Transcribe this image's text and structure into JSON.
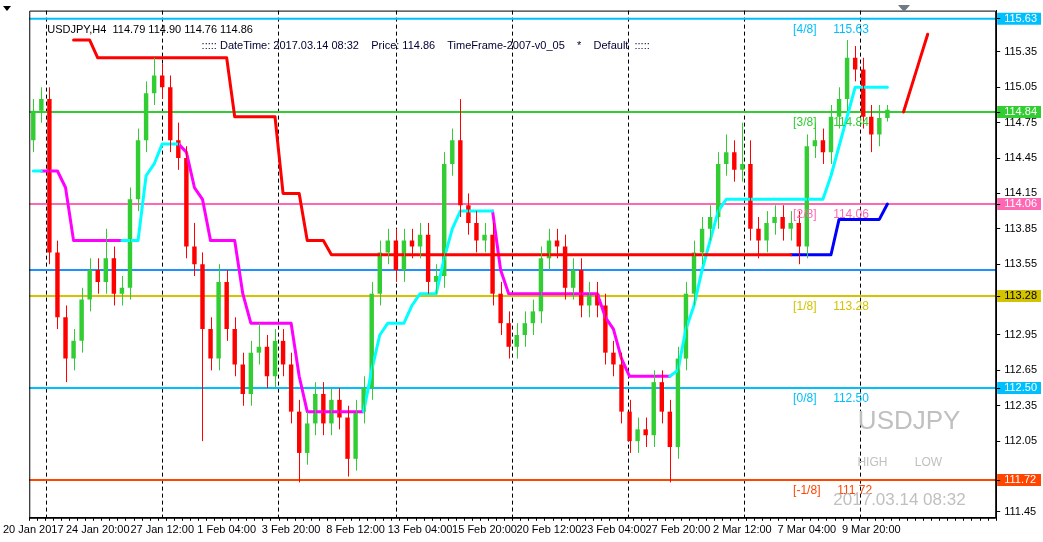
{
  "chart_data": {
    "type": "candlestick",
    "title": "USDJPY,H4  114.79 114.90 114.76 114.86",
    "subtitle": "::::: DateTime: 2017.03.14 08:32    Price: 114.86    TimeFrame-2007-v0_05    *    Default  :::::",
    "categories": [
      "20 Jan 2017",
      null,
      null,
      null,
      null,
      null,
      null,
      null,
      "24 Jan 20:00",
      null,
      null,
      null,
      null,
      null,
      null,
      null,
      "27 Jan 12:00",
      null,
      null,
      null,
      null,
      null,
      null,
      null,
      "1 Feb 04:00",
      null,
      null,
      null,
      null,
      null,
      null,
      null,
      "3 Feb 20:00",
      null,
      null,
      null,
      null,
      null,
      null,
      null,
      "8 Feb 12:00",
      null,
      null,
      null,
      null,
      null,
      null,
      null,
      "13 Feb 04:00",
      null,
      null,
      null,
      null,
      null,
      null,
      null,
      "15 Feb 20:00",
      null,
      null,
      null,
      null,
      null,
      null,
      null,
      "20 Feb 12:00",
      null,
      null,
      null,
      null,
      null,
      null,
      null,
      "23 Feb 04:00",
      null,
      null,
      null,
      null,
      null,
      null,
      null,
      "27 Feb 20:00",
      null,
      null,
      null,
      null,
      null,
      null,
      null,
      "2 Mar 12:00",
      null,
      null,
      null,
      null,
      null,
      null,
      null,
      "7 Mar 04:00",
      null,
      null,
      null,
      null,
      null,
      null,
      null,
      "9 Mar 20:00",
      null,
      null,
      null,
      null,
      null,
      null,
      null,
      null,
      null,
      null,
      null,
      null,
      null,
      null,
      null
    ],
    "ohlc": [
      [
        114.6,
        114.95,
        114.5,
        114.85
      ],
      [
        114.85,
        115.05,
        114.75,
        114.95
      ],
      [
        114.95,
        115.05,
        113.55,
        113.65
      ],
      [
        113.65,
        113.75,
        113.0,
        113.1
      ],
      [
        113.1,
        113.2,
        112.55,
        112.75
      ],
      [
        112.75,
        113.0,
        112.65,
        112.9
      ],
      [
        112.9,
        113.35,
        112.8,
        113.25
      ],
      [
        113.25,
        113.6,
        113.15,
        113.5
      ],
      [
        113.5,
        113.6,
        113.3,
        113.4
      ],
      [
        113.4,
        113.85,
        113.3,
        113.6
      ],
      [
        113.6,
        113.7,
        113.2,
        113.3
      ],
      [
        113.3,
        113.45,
        113.2,
        113.35
      ],
      [
        113.35,
        114.2,
        113.25,
        114.1
      ],
      [
        114.1,
        114.7,
        114.0,
        114.6
      ],
      [
        114.6,
        115.1,
        114.5,
        115.0
      ],
      [
        115.0,
        115.3,
        114.9,
        115.15
      ],
      [
        115.15,
        115.25,
        114.95,
        115.05
      ],
      [
        115.05,
        115.15,
        114.5,
        114.6
      ],
      [
        114.6,
        114.75,
        114.35,
        114.45
      ],
      [
        114.45,
        114.55,
        113.6,
        113.7
      ],
      [
        113.7,
        113.9,
        113.45,
        113.55
      ],
      [
        113.55,
        113.65,
        112.05,
        113.0
      ],
      [
        113.0,
        113.1,
        112.65,
        112.75
      ],
      [
        112.75,
        113.55,
        112.65,
        113.4
      ],
      [
        113.4,
        113.5,
        112.9,
        113.0
      ],
      [
        113.0,
        113.1,
        112.6,
        112.7
      ],
      [
        112.7,
        112.8,
        112.35,
        112.45
      ],
      [
        112.45,
        112.9,
        112.35,
        112.8
      ],
      [
        112.8,
        113.05,
        112.7,
        112.85
      ],
      [
        112.85,
        112.95,
        112.5,
        112.6
      ],
      [
        112.6,
        113.0,
        112.5,
        112.9
      ],
      [
        112.9,
        113.0,
        112.6,
        112.7
      ],
      [
        112.7,
        112.8,
        112.2,
        112.3
      ],
      [
        112.3,
        112.4,
        111.7,
        111.95
      ],
      [
        111.95,
        112.3,
        111.85,
        112.2
      ],
      [
        112.2,
        112.55,
        112.1,
        112.45
      ],
      [
        112.45,
        112.55,
        112.1,
        112.2
      ],
      [
        112.2,
        112.5,
        112.1,
        112.4
      ],
      [
        112.4,
        112.5,
        112.15,
        112.25
      ],
      [
        112.25,
        112.35,
        111.75,
        111.9
      ],
      [
        111.9,
        112.4,
        111.8,
        112.3
      ],
      [
        112.3,
        112.6,
        112.2,
        112.5
      ],
      [
        112.5,
        113.4,
        112.4,
        113.3
      ],
      [
        113.3,
        113.75,
        113.2,
        113.65
      ],
      [
        113.65,
        113.85,
        113.55,
        113.75
      ],
      [
        113.75,
        113.85,
        113.4,
        113.5
      ],
      [
        113.5,
        113.85,
        113.4,
        113.75
      ],
      [
        113.75,
        113.85,
        113.6,
        113.7
      ],
      [
        113.7,
        113.9,
        113.6,
        113.8
      ],
      [
        113.8,
        113.9,
        113.3,
        113.4
      ],
      [
        113.4,
        113.55,
        113.3,
        113.45
      ],
      [
        113.45,
        114.5,
        113.35,
        114.4
      ],
      [
        114.4,
        114.7,
        114.3,
        114.6
      ],
      [
        114.6,
        114.95,
        113.95,
        114.05
      ],
      [
        114.05,
        114.15,
        113.8,
        113.9
      ],
      [
        113.9,
        114.0,
        113.65,
        113.75
      ],
      [
        113.75,
        113.9,
        113.65,
        113.8
      ],
      [
        113.8,
        113.9,
        113.2,
        113.3
      ],
      [
        113.3,
        113.4,
        112.95,
        113.05
      ],
      [
        113.05,
        113.15,
        112.75,
        112.85
      ],
      [
        112.85,
        113.05,
        112.75,
        112.95
      ],
      [
        112.95,
        113.15,
        112.85,
        113.05
      ],
      [
        113.05,
        113.25,
        112.95,
        113.15
      ],
      [
        113.15,
        113.7,
        113.05,
        113.6
      ],
      [
        113.6,
        113.85,
        113.5,
        113.75
      ],
      [
        113.75,
        113.85,
        113.6,
        113.7
      ],
      [
        113.7,
        113.8,
        113.25,
        113.35
      ],
      [
        113.35,
        113.6,
        113.25,
        113.5
      ],
      [
        113.5,
        113.6,
        113.1,
        113.2
      ],
      [
        113.2,
        113.4,
        113.1,
        113.3
      ],
      [
        113.3,
        113.4,
        113.1,
        113.2
      ],
      [
        113.2,
        113.3,
        112.7,
        112.8
      ],
      [
        112.8,
        112.9,
        112.6,
        112.7
      ],
      [
        112.7,
        112.8,
        112.2,
        112.3
      ],
      [
        112.3,
        112.4,
        111.95,
        112.05
      ],
      [
        112.05,
        112.25,
        111.95,
        112.15
      ],
      [
        112.15,
        112.25,
        112.0,
        112.1
      ],
      [
        112.1,
        112.65,
        112.0,
        112.55
      ],
      [
        112.55,
        112.65,
        112.2,
        112.3
      ],
      [
        112.3,
        112.4,
        111.7,
        112.0
      ],
      [
        112.0,
        112.85,
        111.9,
        112.75
      ],
      [
        112.75,
        113.4,
        112.65,
        113.3
      ],
      [
        113.3,
        113.75,
        113.2,
        113.65
      ],
      [
        113.65,
        113.95,
        113.55,
        113.85
      ],
      [
        113.85,
        114.05,
        113.75,
        113.95
      ],
      [
        113.95,
        114.5,
        113.85,
        114.4
      ],
      [
        114.4,
        114.65,
        114.3,
        114.5
      ],
      [
        114.5,
        114.6,
        114.25,
        114.35
      ],
      [
        114.35,
        114.75,
        114.25,
        114.4
      ],
      [
        114.4,
        114.6,
        113.75,
        113.85
      ],
      [
        113.85,
        113.95,
        113.6,
        113.75
      ],
      [
        113.75,
        114.0,
        113.65,
        113.9
      ],
      [
        113.9,
        114.05,
        113.8,
        113.95
      ],
      [
        113.95,
        114.05,
        113.75,
        113.85
      ],
      [
        113.85,
        114.0,
        113.75,
        113.9
      ],
      [
        113.9,
        114.0,
        113.55,
        113.7
      ],
      [
        113.7,
        114.65,
        113.6,
        114.55
      ],
      [
        114.55,
        114.75,
        114.45,
        114.6
      ],
      [
        114.6,
        114.7,
        114.4,
        114.5
      ],
      [
        114.5,
        114.9,
        114.4,
        114.8
      ],
      [
        114.8,
        115.05,
        114.7,
        114.95
      ],
      [
        114.95,
        115.45,
        114.85,
        115.3
      ],
      [
        115.3,
        115.4,
        115.1,
        115.2
      ],
      [
        115.2,
        115.3,
        114.7,
        114.8
      ],
      [
        114.8,
        114.9,
        114.5,
        114.65
      ],
      [
        114.65,
        114.9,
        114.55,
        114.79
      ],
      [
        114.79,
        114.9,
        114.76,
        114.86
      ],
      null,
      null,
      null,
      null,
      null,
      null,
      null,
      null,
      null,
      null,
      null,
      null,
      null
    ],
    "colors": [
      "#32cd32",
      "#32cd32",
      "#ff0000",
      "#ff0000",
      "#ff0000",
      "#32cd32",
      "#32cd32",
      "#32cd32",
      "#ff0000",
      "#32cd32",
      "#ff0000",
      "#32cd32",
      "#32cd32",
      "#32cd32",
      "#32cd32",
      "#32cd32",
      "#ff0000",
      "#ff0000",
      "#ff0000",
      "#ff0000",
      "#ff0000",
      "#ff0000",
      "#ff0000",
      "#32cd32",
      "#ff0000",
      "#ff0000",
      "#ff0000",
      "#32cd32",
      "#32cd32",
      "#ff0000",
      "#32cd32",
      "#ff0000",
      "#ff0000",
      "#ff0000",
      "#32cd32",
      "#32cd32",
      "#ff0000",
      "#32cd32",
      "#ff0000",
      "#ff0000",
      "#32cd32",
      "#32cd32",
      "#32cd32",
      "#32cd32",
      "#32cd32",
      "#ff0000",
      "#32cd32",
      "#ff0000",
      "#32cd32",
      "#ff0000",
      "#32cd32",
      "#32cd32",
      "#32cd32",
      "#ff0000",
      "#ff0000",
      "#ff0000",
      "#32cd32",
      "#ff0000",
      "#ff0000",
      "#ff0000",
      "#32cd32",
      "#32cd32",
      "#32cd32",
      "#32cd32",
      "#32cd32",
      "#ff0000",
      "#ff0000",
      "#32cd32",
      "#ff0000",
      "#32cd32",
      "#ff0000",
      "#ff0000",
      "#ff0000",
      "#ff0000",
      "#ff0000",
      "#32cd32",
      "#ff0000",
      "#32cd32",
      "#ff0000",
      "#ff0000",
      "#32cd32",
      "#32cd32",
      "#32cd32",
      "#32cd32",
      "#32cd32",
      "#32cd32",
      "#32cd32",
      "#ff0000",
      "#32cd32",
      "#ff0000",
      "#ff0000",
      "#32cd32",
      "#32cd32",
      "#ff0000",
      "#32cd32",
      "#ff0000",
      "#32cd32",
      "#32cd32",
      "#ff0000",
      "#32cd32",
      "#32cd32",
      "#32cd32",
      "#ff0000",
      "#ff0000",
      "#ff0000",
      "#32cd32",
      "#32cd32",
      null,
      null,
      null,
      null,
      null,
      null,
      null,
      null,
      null,
      null,
      null,
      null,
      null
    ],
    "series": [
      {
        "type": "line",
        "color": "#ff0000",
        "values": [
          null,
          null,
          null,
          null,
          null,
          115.45,
          115.45,
          115.45,
          115.3,
          115.3,
          115.3,
          115.3,
          115.3,
          115.3,
          115.3,
          115.3,
          115.3,
          115.3,
          115.3,
          115.3,
          115.3,
          115.3,
          115.3,
          115.3,
          115.3,
          114.8,
          114.8,
          114.8,
          114.8,
          114.8,
          114.8,
          114.15,
          114.15,
          114.15,
          113.75,
          113.75,
          113.75,
          113.63,
          113.63,
          113.63,
          113.63,
          113.63,
          113.63,
          113.63,
          113.63,
          113.63,
          113.63,
          113.63,
          113.63,
          113.63,
          113.63,
          113.63,
          113.63,
          113.63,
          113.63,
          113.63,
          113.63,
          113.63,
          113.63,
          113.63,
          113.63,
          113.63,
          113.63,
          113.63,
          113.63,
          113.63,
          113.63,
          113.63,
          113.63,
          113.63,
          113.63,
          113.63,
          113.63,
          113.63,
          113.63,
          113.63,
          113.63,
          113.63,
          113.63,
          113.63,
          113.63,
          113.63,
          113.63,
          113.63,
          113.63,
          113.63,
          113.63,
          113.63,
          113.63,
          113.63,
          113.63,
          113.63,
          113.63,
          113.63,
          113.63,
          null,
          null,
          null,
          null,
          null,
          null,
          null,
          null,
          null,
          null,
          null,
          null,
          null,
          null,
          null,
          null,
          null,
          null,
          null,
          null,
          null,
          null,
          null,
          null,
          null
        ]
      },
      {
        "type": "line",
        "color": "#0000ff",
        "values": [
          null,
          null,
          null,
          null,
          null,
          null,
          null,
          null,
          null,
          null,
          null,
          null,
          null,
          null,
          null,
          null,
          null,
          null,
          null,
          null,
          null,
          null,
          null,
          null,
          null,
          null,
          null,
          null,
          null,
          null,
          null,
          null,
          null,
          null,
          null,
          null,
          null,
          null,
          null,
          null,
          null,
          null,
          null,
          null,
          null,
          null,
          null,
          null,
          null,
          null,
          null,
          null,
          null,
          null,
          null,
          null,
          null,
          null,
          null,
          null,
          null,
          null,
          null,
          null,
          null,
          null,
          null,
          null,
          null,
          null,
          null,
          null,
          null,
          null,
          null,
          null,
          null,
          null,
          null,
          null,
          null,
          null,
          null,
          null,
          null,
          null,
          null,
          null,
          null,
          null,
          null,
          null,
          null,
          null,
          113.63,
          113.63,
          113.63,
          113.63,
          113.63,
          113.63,
          113.93,
          113.93,
          113.93,
          113.93,
          113.93,
          113.93,
          114.06,
          null,
          null,
          null,
          null,
          null,
          null,
          null,
          null,
          null,
          null,
          null,
          null,
          null
        ]
      },
      {
        "type": "line",
        "color": "#00ffff",
        "values": [
          114.34,
          114.34,
          null,
          null,
          null,
          null,
          null,
          null,
          null,
          null,
          null,
          113.75,
          113.75,
          113.75,
          114.3,
          114.4,
          114.57,
          114.57,
          114.57,
          null,
          null,
          null,
          null,
          null,
          null,
          null,
          null,
          null,
          null,
          null,
          null,
          null,
          null,
          null,
          null,
          null,
          null,
          null,
          null,
          null,
          null,
          112.3,
          112.65,
          112.95,
          113.05,
          113.05,
          113.05,
          113.2,
          113.3,
          113.3,
          113.3,
          113.6,
          113.85,
          114.0,
          114.0,
          114.0,
          114.0,
          114.0,
          null,
          null,
          null,
          null,
          null,
          null,
          null,
          null,
          null,
          null,
          null,
          null,
          null,
          null,
          null,
          null,
          null,
          null,
          null,
          null,
          null,
          112.6,
          112.65,
          113.0,
          113.2,
          113.5,
          113.75,
          114.0,
          114.1,
          114.1,
          114.1,
          114.1,
          114.1,
          114.1,
          114.1,
          114.1,
          114.1,
          114.1,
          114.1,
          114.1,
          114.1,
          114.3,
          114.55,
          114.8,
          115.05,
          115.05,
          115.05,
          115.05,
          115.05,
          null,
          null,
          null,
          null,
          null,
          null,
          null,
          null,
          null,
          null,
          null,
          null,
          null
        ]
      },
      {
        "type": "line",
        "color": "#ff00ff",
        "values": [
          null,
          114.34,
          114.34,
          114.34,
          114.2,
          113.75,
          113.75,
          113.75,
          113.75,
          113.75,
          113.75,
          113.75,
          null,
          null,
          null,
          null,
          null,
          null,
          114.57,
          114.5,
          114.2,
          114.1,
          113.75,
          113.75,
          113.75,
          113.75,
          113.3,
          113.05,
          113.05,
          113.05,
          113.05,
          113.05,
          113.05,
          112.6,
          112.3,
          112.3,
          112.3,
          112.3,
          112.3,
          112.3,
          112.3,
          112.3,
          null,
          null,
          null,
          null,
          null,
          null,
          null,
          null,
          null,
          null,
          null,
          null,
          null,
          null,
          null,
          114.0,
          113.5,
          113.3,
          113.3,
          113.3,
          113.3,
          113.3,
          113.3,
          113.3,
          113.3,
          113.3,
          113.3,
          113.3,
          113.3,
          113.1,
          113.0,
          112.75,
          112.6,
          112.6,
          112.6,
          112.6,
          112.6,
          112.6,
          null,
          null,
          null,
          null,
          null,
          null,
          null,
          null,
          null,
          null,
          null,
          null,
          null,
          null,
          null,
          null,
          null,
          null,
          null,
          null,
          null,
          null,
          null,
          null,
          null,
          null,
          null,
          null,
          null,
          null,
          null,
          null,
          null,
          null,
          null,
          null,
          null,
          null,
          null,
          null
        ]
      },
      {
        "type": "line",
        "color": "#ff0000",
        "values": [
          null,
          null,
          null,
          null,
          null,
          null,
          null,
          null,
          null,
          null,
          null,
          null,
          null,
          null,
          null,
          null,
          null,
          null,
          null,
          null,
          null,
          null,
          null,
          null,
          null,
          null,
          null,
          null,
          null,
          null,
          null,
          null,
          null,
          null,
          null,
          null,
          null,
          null,
          null,
          null,
          null,
          null,
          null,
          null,
          null,
          null,
          null,
          null,
          null,
          null,
          null,
          null,
          null,
          null,
          null,
          null,
          null,
          null,
          null,
          null,
          null,
          null,
          null,
          null,
          null,
          null,
          null,
          null,
          null,
          null,
          null,
          null,
          null,
          null,
          null,
          null,
          null,
          null,
          null,
          null,
          null,
          null,
          null,
          null,
          null,
          null,
          null,
          null,
          null,
          null,
          null,
          null,
          null,
          null,
          null,
          null,
          null,
          null,
          null,
          null,
          null,
          null,
          null,
          null,
          null,
          null,
          null,
          null,
          114.84,
          115.06,
          115.28,
          115.5,
          null,
          null,
          null,
          null,
          null,
          null,
          null,
          null
        ]
      }
    ],
    "ref_lines": [
      {
        "axis": "y",
        "value": 115.63,
        "label": "[4/8]     115.63",
        "color": "#00bfff"
      },
      {
        "axis": "y",
        "value": 114.84,
        "label": "[3/8]     114.84",
        "color": "#32cd32"
      },
      {
        "axis": "y",
        "value": 114.06,
        "label": "[2/8]     114.06",
        "color": "#ff69b4"
      },
      {
        "axis": "y",
        "value": 113.5,
        "color": "#1e90ff"
      },
      {
        "axis": "y",
        "value": 113.28,
        "label": "[1/8]     113.28",
        "color": "#d4c400"
      },
      {
        "axis": "y",
        "value": 112.5,
        "label": "[0/8]     112.50",
        "color": "#00bfff"
      },
      {
        "axis": "y",
        "value": 111.72,
        "label": "[-1/8]     111.72",
        "color": "#ff4500"
      }
    ],
    "annotations": [
      "USDJPY",
      "HIGH",
      "LOW",
      "2017.03.14 08:32"
    ],
    "ylim": [
      111.4,
      115.7
    ],
    "yticks": [
      111.45,
      {
        "value": 111.72,
        "label": "111.72"
      },
      112.05,
      112.35,
      {
        "value": 112.5,
        "label": "112.50"
      },
      112.65,
      112.95,
      {
        "value": 113.28,
        "label": "113.28"
      },
      113.55,
      113.85,
      {
        "value": 114.06,
        "label": "114.06"
      },
      114.15,
      114.45,
      114.75,
      {
        "value": 114.84,
        "label": "114.84"
      },
      115.05,
      115.35,
      {
        "value": 115.63,
        "label": "115.63"
      }
    ],
    "grid": false,
    "legend": false,
    "marker": "none",
    "line_style": "solid"
  }
}
